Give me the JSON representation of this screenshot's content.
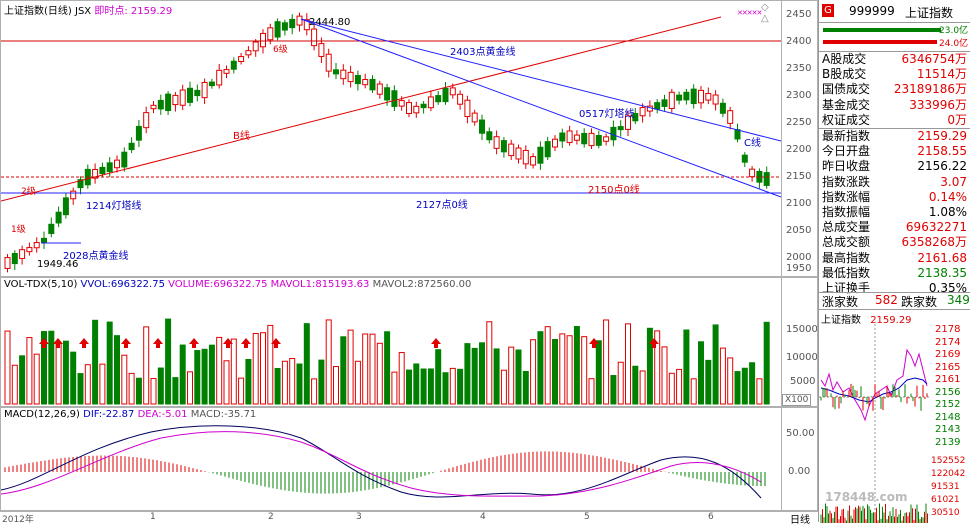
{
  "chart_header": {
    "title": "上证指数(日线)",
    "suffix": "JSX",
    "realtime_label": "即时点:",
    "realtime_value": "2159.29",
    "top_icons": "✕✕✕✕✕"
  },
  "price_axis": {
    "ticks": [
      "2450",
      "2400",
      "2350",
      "2300",
      "2250",
      "2200",
      "2150",
      "2100",
      "2050",
      "2000",
      "1950"
    ]
  },
  "annotations": {
    "high_label": "2444.80",
    "low_label": "1949.46",
    "line_2403": "2403点黄金线",
    "line_0517": "0517灯塔线",
    "line_b": "B线",
    "line_c": "C线",
    "line_2150": "2150点0线",
    "line_2127": "2127点0线",
    "line_1214": "1214灯塔线",
    "line_2028": "2028点黄金线",
    "wave_6": "6级",
    "wave_2": "2级",
    "wave_1": "1级"
  },
  "volume_panel": {
    "name": "VOL-TDX(5,10)",
    "vvol_label": "VVOL:",
    "vvol_value": "696322.75",
    "volume_label": "VOLUME:",
    "volume_value": "696322.75",
    "mavol1_label": "MAVOL1:",
    "mavol1_value": "815193.63",
    "mavol2_label": "MAVOL2:",
    "mavol2_value": "872560.00",
    "ticks": [
      "15000",
      "10000",
      "5000"
    ],
    "unit": "X100"
  },
  "macd_panel": {
    "name": "MACD(12,26,9)",
    "dif_label": "DIF:",
    "dif_value": "-22.87",
    "dea_label": "DEA:",
    "dea_value": "-5.01",
    "macd_label": "MACD:",
    "macd_value": "-35.71",
    "ticks": [
      "50.00",
      "0.00"
    ]
  },
  "x_axis": {
    "labels": [
      "2012年",
      "1",
      "2",
      "3",
      "4",
      "5",
      "6"
    ],
    "period": "日线"
  },
  "quote_panel": {
    "badge": "G",
    "code": "999999",
    "name": "上证指数",
    "buy_amount": "23.0亿",
    "sell_amount": "24.0亿",
    "rows_a": [
      {
        "label": "A股成交",
        "value": "6346754万",
        "color": "#e00000"
      },
      {
        "label": "B股成交",
        "value": "11514万",
        "color": "#e00000"
      },
      {
        "label": "国债成交",
        "value": "23189186万",
        "color": "#e00000"
      },
      {
        "label": "基金成交",
        "value": "333996万",
        "color": "#e00000"
      },
      {
        "label": "权证成交",
        "value": "0万",
        "color": "#e00000"
      }
    ],
    "rows_b": [
      {
        "label": "最新指数",
        "value": "2159.29",
        "color": "#e00000"
      },
      {
        "label": "今日开盘",
        "value": "2158.55",
        "color": "#e00000"
      },
      {
        "label": "昨日收盘",
        "value": "2156.22",
        "color": "#000000"
      },
      {
        "label": "指数涨跌",
        "value": "3.07",
        "color": "#e00000"
      },
      {
        "label": "指数涨幅",
        "value": "0.14%",
        "color": "#e00000"
      },
      {
        "label": "指数振幅",
        "value": "1.08%",
        "color": "#000000"
      },
      {
        "label": "总成交量",
        "value": "69632271",
        "color": "#e00000"
      },
      {
        "label": "总成交额",
        "value": "6358268万",
        "color": "#e00000"
      },
      {
        "label": "最高指数",
        "value": "2161.68",
        "color": "#e00000"
      },
      {
        "label": "最低指数",
        "value": "2138.35",
        "color": "#008000"
      },
      {
        "label": "上证换手",
        "value": "0.35%",
        "color": "#000000"
      }
    ],
    "up_label": "涨家数",
    "up_value": "582",
    "down_label": "跌家数",
    "down_value": "349"
  },
  "mini_chart": {
    "title": "上证指数",
    "value": "2159.29",
    "right_ticks": [
      "2178",
      "2174",
      "2169",
      "2165",
      "2161",
      "2156",
      "2152",
      "2148",
      "2143",
      "2139"
    ],
    "vol_ticks": [
      "152552",
      "122042",
      "91531",
      "61021",
      "30510"
    ],
    "watermark": "178448.com"
  },
  "colors": {
    "up": "#e00000",
    "down": "#008000",
    "trend_line": "#0000cc",
    "red_line": "#e00000",
    "magenta": "#d000d0"
  }
}
